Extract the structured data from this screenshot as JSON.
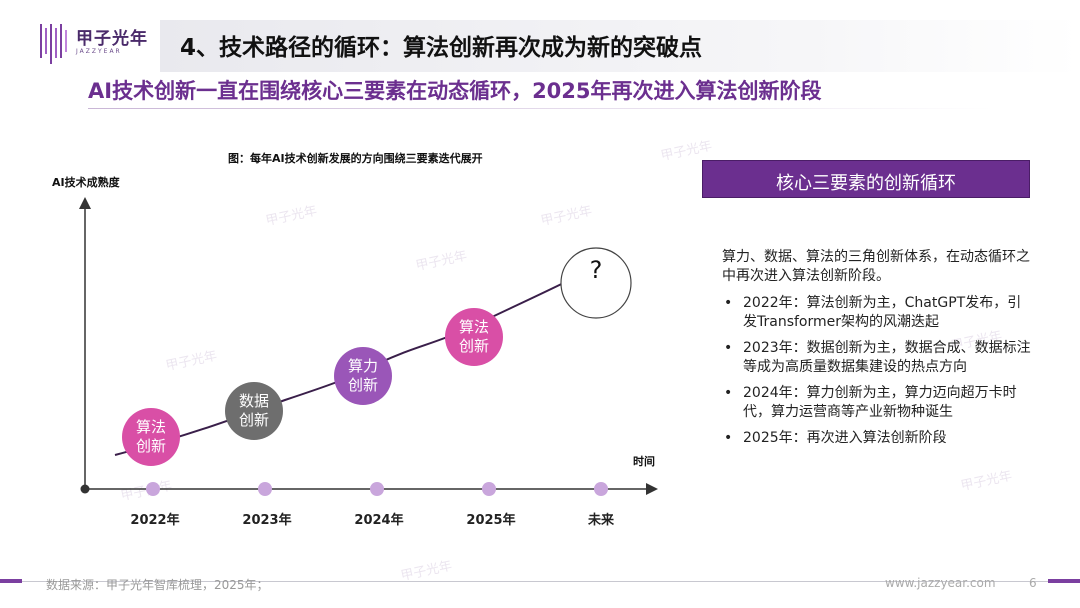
{
  "logo": {
    "name": "甲子光年",
    "subtitle": "JAZZYEAR"
  },
  "header": {
    "title": "4、技术路径的循环：算法创新再次成为新的突破点",
    "subtitle": "AI技术创新一直在围绕核心三要素在动态循环，2025年再次进入算法创新阶段"
  },
  "figure": {
    "title": "图：每年AI技术创新发展的方向围绕三要素迭代展开",
    "y_axis_label": "AI技术成熟度",
    "x_axis_label": "时间",
    "years": [
      "2022年",
      "2023年",
      "2024年",
      "2025年",
      "未来"
    ],
    "nodes": [
      {
        "line1": "算法",
        "line2": "创新",
        "color": "#d94fa6"
      },
      {
        "line1": "数据",
        "line2": "创新",
        "color": "#6e6e6e"
      },
      {
        "line1": "算力",
        "line2": "创新",
        "color": "#9a56b8"
      },
      {
        "line1": "算法",
        "line2": "创新",
        "color": "#d94fa6"
      },
      {
        "line1": "?",
        "color": "#ffffff"
      }
    ],
    "colors": {
      "axis": "#333333",
      "curve": "#3a1f4a",
      "year_dot": "#c9a6dc"
    }
  },
  "panel": {
    "header": "核心三要素的创新循环",
    "intro": "算力、数据、算法的三角创新体系，在动态循环之中再次进入算法创新阶段。",
    "bullets": [
      "2022年：算法创新为主，ChatGPT发布，引发Transformer架构的风潮迭起",
      "2023年：数据创新为主，数据合成、数据标注等成为高质量数据集建设的热点方向",
      "2024年：算力创新为主，算力迈向超万卡时代，算力运营商等产业新物种诞生",
      "2025年：再次进入算法创新阶段"
    ],
    "bullet_symbol": "•",
    "accent_color": "#6b2f8f"
  },
  "footer": {
    "source": "数据来源：甲子光年智库梳理，2025年；",
    "site": "www.jazzyear.com",
    "page": "6"
  }
}
